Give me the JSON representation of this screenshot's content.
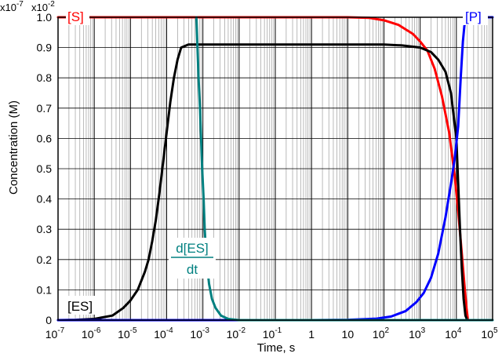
{
  "chart_data": {
    "type": "line",
    "title": "",
    "xlabel": "Time, s",
    "ylabel": "Concentration (M)",
    "xscale": "log",
    "xlim": [
      "10^-7",
      "10^5"
    ],
    "ylim": [
      0,
      1.0
    ],
    "grid": true,
    "corner_labels": [
      "x10",
      "-7",
      "x10",
      "-2"
    ],
    "x_ticks": [
      {
        "base": "10",
        "exp": "-7"
      },
      {
        "base": "10",
        "exp": "-6"
      },
      {
        "base": "10",
        "exp": "-5"
      },
      {
        "base": "10",
        "exp": "-4"
      },
      {
        "base": "10",
        "exp": "-3"
      },
      {
        "base": "10",
        "exp": "-2"
      },
      {
        "base": "10",
        "exp": "-1"
      },
      {
        "base": "1",
        "exp": ""
      },
      {
        "base": "10",
        "exp": ""
      },
      {
        "base": "10",
        "exp": "2"
      },
      {
        "base": "10",
        "exp": "3"
      },
      {
        "base": "10",
        "exp": "4"
      },
      {
        "base": "10",
        "exp": "5"
      }
    ],
    "y_ticks": [
      "0",
      "0.1",
      "0.2",
      "0.3",
      "0.4",
      "0.5",
      "0.6",
      "0.7",
      "0.8",
      "0.9",
      "1.0"
    ],
    "series": [
      {
        "name": "[S]",
        "color": "#ff0000",
        "points": [
          [
            -7,
            1.0
          ],
          [
            1,
            1.0
          ],
          [
            1.6,
            0.998
          ],
          [
            2.0,
            0.99
          ],
          [
            2.4,
            0.975
          ],
          [
            2.8,
            0.945
          ],
          [
            3.0,
            0.92
          ],
          [
            3.2,
            0.89
          ],
          [
            3.4,
            0.83
          ],
          [
            3.6,
            0.74
          ],
          [
            3.8,
            0.62
          ],
          [
            3.95,
            0.48
          ],
          [
            4.05,
            0.36
          ],
          [
            4.15,
            0.22
          ],
          [
            4.22,
            0.12
          ],
          [
            4.28,
            0.04
          ],
          [
            4.32,
            0.0
          ]
        ]
      },
      {
        "name": "[ES]",
        "color": "#000000",
        "points": [
          [
            -7,
            0.0
          ],
          [
            -6.5,
            0.001
          ],
          [
            -6,
            0.004
          ],
          [
            -5.5,
            0.015
          ],
          [
            -5.2,
            0.04
          ],
          [
            -5,
            0.065
          ],
          [
            -4.8,
            0.1
          ],
          [
            -4.6,
            0.16
          ],
          [
            -4.5,
            0.2
          ],
          [
            -4.4,
            0.26
          ],
          [
            -4.3,
            0.33
          ],
          [
            -4.2,
            0.42
          ],
          [
            -4.1,
            0.52
          ],
          [
            -4.0,
            0.62
          ],
          [
            -3.9,
            0.72
          ],
          [
            -3.8,
            0.8
          ],
          [
            -3.7,
            0.86
          ],
          [
            -3.6,
            0.9
          ],
          [
            -3.4,
            0.91
          ],
          [
            -3,
            0.91
          ],
          [
            2,
            0.91
          ],
          [
            2.5,
            0.907
          ],
          [
            3,
            0.9
          ],
          [
            3.3,
            0.885
          ],
          [
            3.5,
            0.86
          ],
          [
            3.7,
            0.82
          ],
          [
            3.85,
            0.75
          ],
          [
            4.0,
            0.6
          ],
          [
            4.05,
            0.45
          ],
          [
            4.1,
            0.3
          ],
          [
            4.15,
            0.17
          ],
          [
            4.2,
            0.07
          ],
          [
            4.25,
            0.015
          ],
          [
            4.3,
            0.0
          ]
        ]
      },
      {
        "name": "[P]",
        "color": "#0000ff",
        "points": [
          [
            -7,
            0.0
          ],
          [
            0,
            0.0
          ],
          [
            1.0,
            0.001
          ],
          [
            1.8,
            0.005
          ],
          [
            2.2,
            0.012
          ],
          [
            2.6,
            0.03
          ],
          [
            2.9,
            0.06
          ],
          [
            3.1,
            0.09
          ],
          [
            3.3,
            0.14
          ],
          [
            3.5,
            0.22
          ],
          [
            3.7,
            0.34
          ],
          [
            3.85,
            0.45
          ],
          [
            3.95,
            0.53
          ],
          [
            4.05,
            0.64
          ],
          [
            4.12,
            0.8
          ],
          [
            4.18,
            0.92
          ],
          [
            4.22,
            0.97
          ],
          [
            4.26,
            0.995
          ],
          [
            4.3,
            1.0
          ],
          [
            5,
            1.0
          ]
        ]
      },
      {
        "name": "d[ES]/dt",
        "name_parts": [
          "d[ES]",
          "dt"
        ],
        "color": "#008080",
        "points": [
          [
            -3.18,
            1.0
          ],
          [
            -3.15,
            0.9
          ],
          [
            -3.12,
            0.8
          ],
          [
            -3.08,
            0.7
          ],
          [
            -3.05,
            0.6
          ],
          [
            -3.02,
            0.5
          ],
          [
            -2.98,
            0.4
          ],
          [
            -2.95,
            0.3
          ],
          [
            -2.9,
            0.2
          ],
          [
            -2.83,
            0.12
          ],
          [
            -2.75,
            0.07
          ],
          [
            -2.65,
            0.04
          ],
          [
            -2.5,
            0.015
          ],
          [
            -2.3,
            0.004
          ],
          [
            -2.0,
            0.0
          ],
          [
            5,
            0.0
          ]
        ]
      }
    ]
  }
}
